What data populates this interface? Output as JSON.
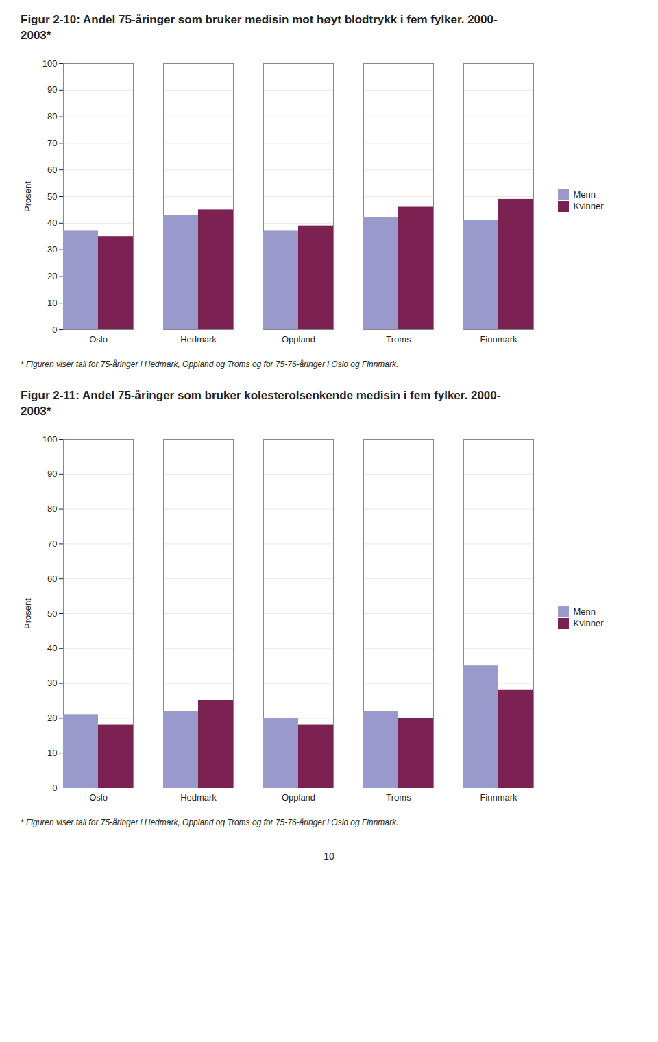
{
  "chart_data": [
    {
      "type": "bar",
      "title": "Figur 2-10: Andel 75-åringer som bruker medisin mot høyt blodtrykk i fem fylker. 2000-\n2003*",
      "categories": [
        "Oslo",
        "Hedmark",
        "Oppland",
        "Troms",
        "Finnmark"
      ],
      "series": [
        {
          "name": "Menn",
          "color": "#9999cc",
          "values": [
            37,
            43,
            37,
            42,
            41
          ]
        },
        {
          "name": "Kvinner",
          "color": "#7b2252",
          "values": [
            35,
            45,
            39,
            46,
            49
          ]
        }
      ],
      "ylabel": "Prosent",
      "ylim": [
        0,
        100
      ],
      "yticks": [
        0,
        10,
        20,
        30,
        40,
        50,
        60,
        70,
        80,
        90,
        100
      ],
      "grid": true,
      "legend": "right",
      "footnote": "* Figuren viser tall for 75-åringer i Hedmark, Oppland og Troms og for 75-76-åringer i Oslo og Finnmark."
    },
    {
      "type": "bar",
      "title": "Figur 2-11: Andel 75-åringer som bruker kolesterolsenkende medisin i fem fylker. 2000-\n2003*",
      "categories": [
        "Oslo",
        "Hedmark",
        "Oppland",
        "Troms",
        "Finnmark"
      ],
      "series": [
        {
          "name": "Menn",
          "color": "#9999cc",
          "values": [
            21,
            22,
            20,
            22,
            35
          ]
        },
        {
          "name": "Kvinner",
          "color": "#7b2252",
          "values": [
            18,
            25,
            18,
            20,
            28
          ]
        }
      ],
      "ylabel": "Prosent",
      "ylim": [
        0,
        100
      ],
      "yticks": [
        0,
        10,
        20,
        30,
        40,
        50,
        60,
        70,
        80,
        90,
        100
      ],
      "grid": true,
      "legend": "right",
      "footnote": "* Figuren viser tall for 75-åringer i Hedmark, Oppland og Troms og for 75-76-åringer i Oslo og Finnmark."
    }
  ],
  "page_number": "10"
}
